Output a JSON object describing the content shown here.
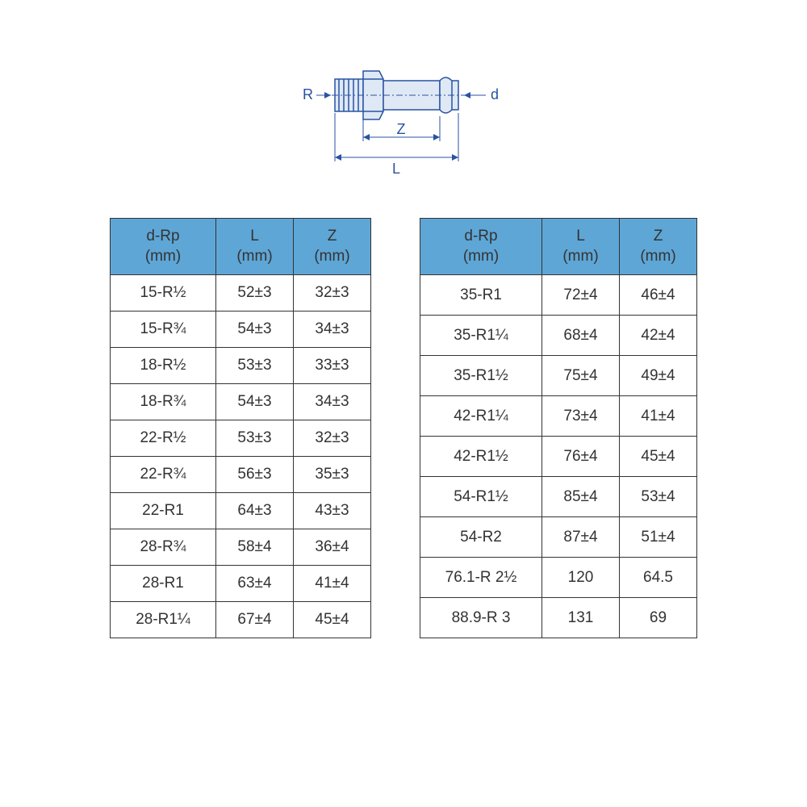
{
  "diagram": {
    "label_R": "R",
    "label_d": "d",
    "label_Z": "Z",
    "label_L": "L",
    "stroke": "#2952a3",
    "stroke_width": 1.5,
    "fill": "#dfe9f5",
    "text_color": "#2952a3"
  },
  "headers": {
    "c1": "d-Rp",
    "u": "(mm)",
    "c2": "L",
    "c3": "Z"
  },
  "table1": {
    "rows": [
      {
        "d": "15-R½",
        "L": "52±3",
        "Z": "32±3"
      },
      {
        "d": "15-R¾",
        "L": "54±3",
        "Z": "34±3"
      },
      {
        "d": "18-R½",
        "L": "53±3",
        "Z": "33±3"
      },
      {
        "d": "18-R¾",
        "L": "54±3",
        "Z": "34±3"
      },
      {
        "d": "22-R½",
        "L": "53±3",
        "Z": "32±3"
      },
      {
        "d": "22-R¾",
        "L": "56±3",
        "Z": "35±3"
      },
      {
        "d": "22-R1",
        "L": "64±3",
        "Z": "43±3"
      },
      {
        "d": "28-R¾",
        "L": "58±4",
        "Z": "36±4"
      },
      {
        "d": "28-R1",
        "L": "63±4",
        "Z": "41±4"
      },
      {
        "d": "28-R1¼",
        "L": "67±4",
        "Z": "45±4"
      }
    ]
  },
  "table2": {
    "rows": [
      {
        "d": "35-R1",
        "L": "72±4",
        "Z": "46±4"
      },
      {
        "d": "35-R1¼",
        "L": "68±4",
        "Z": "42±4"
      },
      {
        "d": "35-R1½",
        "L": "75±4",
        "Z": "49±4"
      },
      {
        "d": "42-R1¼",
        "L": "73±4",
        "Z": "41±4"
      },
      {
        "d": "42-R1½",
        "L": "76±4",
        "Z": "45±4"
      },
      {
        "d": "54-R1½",
        "L": "85±4",
        "Z": "53±4"
      },
      {
        "d": "54-R2",
        "L": "87±4",
        "Z": "51±4"
      },
      {
        "d": "76.1-R 2½",
        "L": "120",
        "Z": "64.5"
      },
      {
        "d": "88.9-R 3",
        "L": "131",
        "Z": "69"
      }
    ]
  }
}
